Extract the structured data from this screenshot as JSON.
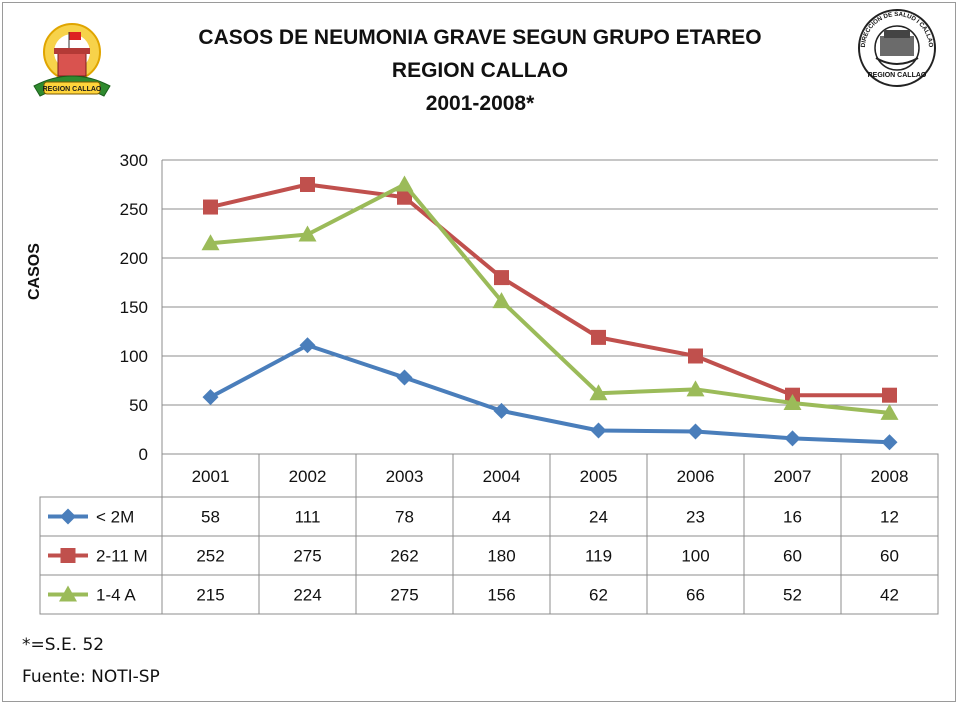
{
  "title": {
    "line1": "CASOS DE NEUMONIA GRAVE SEGUN GRUPO ETAREO",
    "line2": "REGION CALLAO",
    "line3": "2001-2008*"
  },
  "logos": {
    "left": "REGION CALLAO",
    "right_top": "DIRECCION DE SALUD I CALLAO",
    "right_bottom": "REGION CALLAO"
  },
  "footnotes": {
    "note": "*=S.E. 52",
    "source": "Fuente: NOTI-SP"
  },
  "chart_data": {
    "type": "line",
    "title": "CASOS DE NEUMONIA GRAVE SEGUN GRUPO ETAREO REGION CALLAO 2001-2008*",
    "xlabel": "",
    "ylabel": "CASOS",
    "ylim": [
      0,
      300
    ],
    "yticks": [
      0,
      50,
      100,
      150,
      200,
      250,
      300
    ],
    "grid": true,
    "legend": "data-table",
    "categories": [
      "2001",
      "2002",
      "2003",
      "2004",
      "2005",
      "2006",
      "2007",
      "2008"
    ],
    "series": [
      {
        "name": "< 2M",
        "color": "#4a7ebb",
        "marker": "diamond",
        "values": [
          58,
          111,
          78,
          44,
          24,
          23,
          16,
          12
        ]
      },
      {
        "name": "2-11 M",
        "color": "#c0504d",
        "marker": "square",
        "values": [
          252,
          275,
          262,
          180,
          119,
          100,
          60,
          60
        ]
      },
      {
        "name": "1-4 A",
        "color": "#9bbb59",
        "marker": "triangle",
        "values": [
          215,
          224,
          275,
          156,
          62,
          66,
          52,
          42
        ]
      }
    ]
  }
}
